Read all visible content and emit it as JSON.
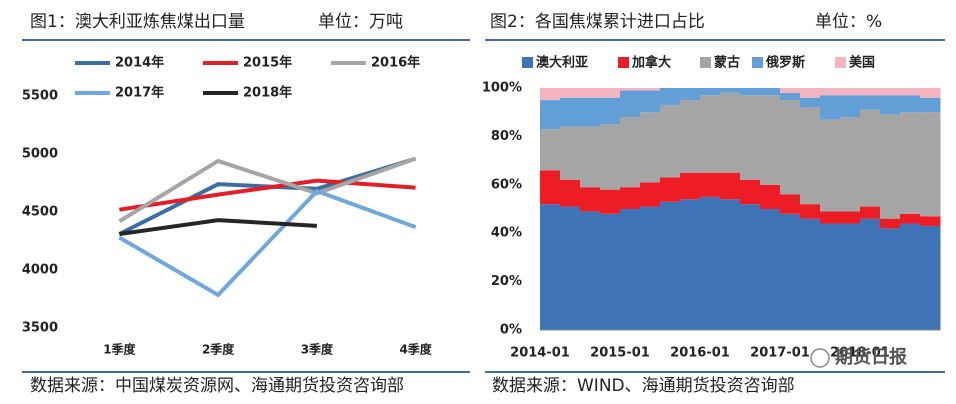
{
  "chart_data": [
    {
      "type": "line",
      "title": "图1：澳大利亚炼焦煤出口量",
      "unit": "单位：万吨",
      "categories": [
        "1季度",
        "2季度",
        "3季度",
        "4季度"
      ],
      "series": [
        {
          "name": "2014年",
          "color": "#3a6ea5",
          "values": [
            4310,
            4740,
            4700,
            4960
          ]
        },
        {
          "name": "2015年",
          "color": "#e31f26",
          "values": [
            4520,
            4650,
            4770,
            4710
          ]
        },
        {
          "name": "2016年",
          "color": "#a6a6a6",
          "values": [
            4420,
            4940,
            4660,
            4960
          ]
        },
        {
          "name": "2017年",
          "color": "#6fa8dc",
          "values": [
            4280,
            3785,
            4680,
            4370
          ]
        },
        {
          "name": "2018年",
          "color": "#262626",
          "values": [
            4310,
            4430,
            4380,
            null
          ]
        }
      ],
      "ylim": [
        3400,
        5600
      ],
      "yticks": [
        3500,
        4000,
        4500,
        5000,
        5500
      ],
      "source": "数据来源：中国煤炭资源网、海通期货投资咨询部"
    },
    {
      "type": "area",
      "title": "图2：各国焦煤累计进口占比",
      "unit": "单位：%",
      "x": [
        "2014-01",
        "2014-04",
        "2014-07",
        "2014-10",
        "2015-01",
        "2015-04",
        "2015-07",
        "2015-10",
        "2016-01",
        "2016-04",
        "2016-07",
        "2016-10",
        "2017-01",
        "2017-04",
        "2017-07",
        "2017-10",
        "2018-01",
        "2018-04",
        "2018-07",
        "2018-10"
      ],
      "series": [
        {
          "name": "澳大利亚",
          "color": "#3f73b8",
          "values": [
            52,
            51,
            49,
            48,
            50,
            51,
            53,
            54,
            55,
            54,
            52,
            50,
            48,
            46,
            44,
            44,
            46,
            42,
            44,
            43
          ]
        },
        {
          "name": "加拿大",
          "color": "#ee1c24",
          "values": [
            14,
            11,
            10,
            10,
            9,
            10,
            10,
            11,
            10,
            11,
            10,
            10,
            8,
            6,
            5,
            5,
            5,
            4,
            4,
            4
          ]
        },
        {
          "name": "蒙古",
          "color": "#a5a5a5",
          "values": [
            17,
            22,
            25,
            27,
            29,
            29,
            30,
            30,
            32,
            33,
            35,
            37,
            39,
            40,
            38,
            39,
            40,
            43,
            42,
            43
          ]
        },
        {
          "name": "俄罗斯",
          "color": "#629fd6",
          "values": [
            12,
            12,
            12,
            11,
            11,
            9,
            7,
            5,
            3,
            2,
            3,
            3,
            3,
            4,
            10,
            9,
            6,
            8,
            7,
            6
          ]
        },
        {
          "name": "美国",
          "color": "#f4b4c0",
          "values": [
            5,
            4,
            4,
            4,
            1,
            1,
            0,
            0,
            0,
            0,
            0,
            0,
            2,
            4,
            3,
            3,
            3,
            3,
            3,
            4
          ]
        }
      ],
      "xlim": [
        "2014-01",
        "2019-01"
      ],
      "xticks": [
        "2014-01",
        "2015-01",
        "2016-01",
        "2017-01",
        "2018-01"
      ],
      "ylim": [
        0,
        100
      ],
      "yticks": [
        {
          "value": 0,
          "label": "0%"
        },
        {
          "value": 20,
          "label": "20%"
        },
        {
          "value": 40,
          "label": "40%"
        },
        {
          "value": 60,
          "label": "60%"
        },
        {
          "value": 80,
          "label": "80%"
        },
        {
          "value": 100,
          "label": "100%"
        }
      ],
      "source": "数据来源：WIND、海通期货投资咨询部",
      "watermark": "期货日报"
    }
  ]
}
